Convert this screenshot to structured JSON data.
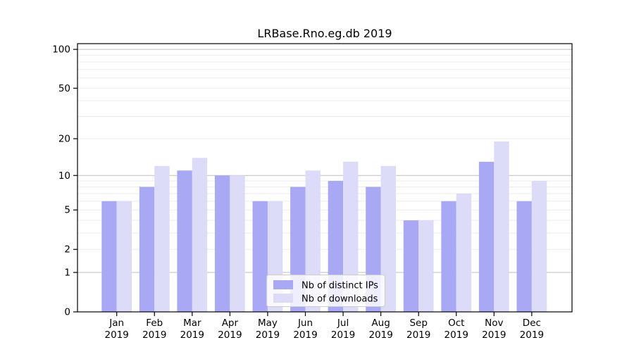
{
  "chart_data": {
    "type": "bar",
    "title": "LRBase.Rno.eg.db 2019",
    "categories": [
      "Jan",
      "Feb",
      "Mar",
      "Apr",
      "May",
      "Jun",
      "Jul",
      "Aug",
      "Sep",
      "Oct",
      "Nov",
      "Dec"
    ],
    "year_label": "2019",
    "series": [
      {
        "name": "Nb of distinct IPs",
        "color": "#a8a8f5",
        "values": [
          6,
          8,
          11,
          10,
          6,
          8,
          9,
          8,
          4,
          6,
          13,
          6
        ]
      },
      {
        "name": "Nb of downloads",
        "color": "#dcdcf9",
        "values": [
          6,
          12,
          14,
          10,
          6,
          11,
          13,
          12,
          4,
          7,
          19,
          9
        ]
      }
    ],
    "xlabel": "",
    "ylabel": "",
    "yscale": "log10(1+v)",
    "ylim": [
      0,
      101
    ],
    "yticks": [
      0,
      1,
      2,
      5,
      10,
      20,
      50,
      100
    ],
    "grid": {
      "major_values": [
        1,
        10,
        100
      ],
      "minor_values": [
        2,
        3,
        4,
        5,
        6,
        7,
        8,
        9,
        20,
        30,
        40,
        50,
        60,
        70,
        80,
        90
      ]
    },
    "legend_position": "lower center inside plot",
    "colors": {
      "major_grid": "#bdbdbd",
      "minor_grid": "#ebebeb",
      "axis": "#000000",
      "text": "#000000"
    }
  }
}
